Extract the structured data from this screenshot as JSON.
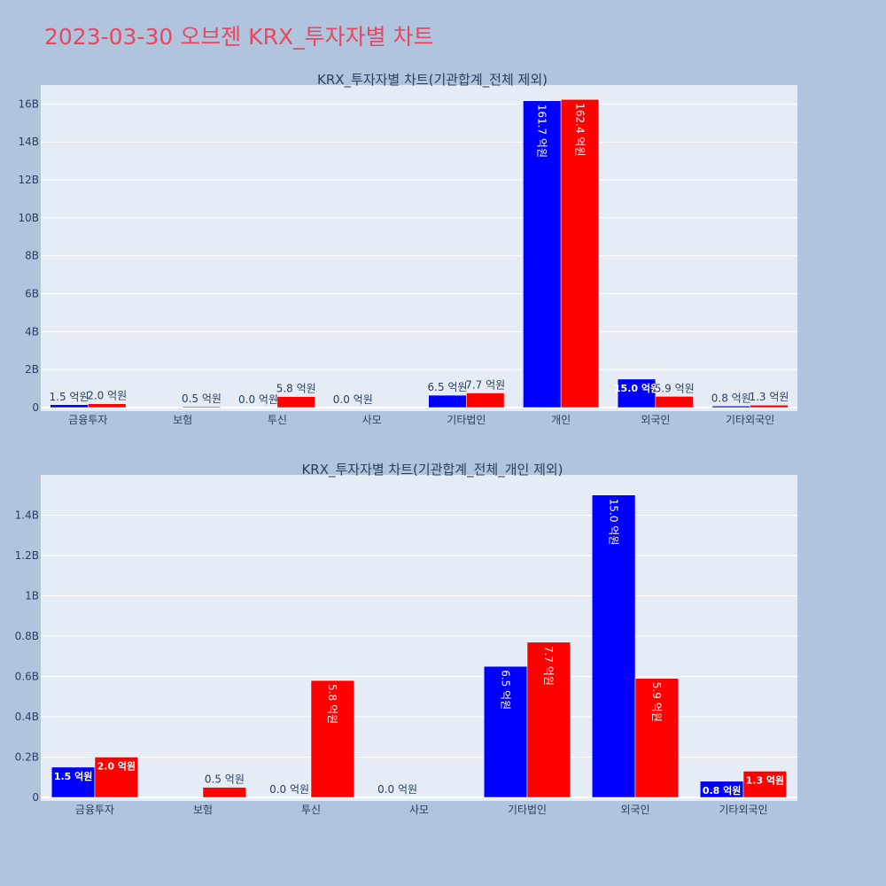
{
  "title": "2023-03-30 오브젠 KRX_투자자별 차트",
  "colors": {
    "background": "#b0c4de",
    "plot_bg": "#e5ecf6",
    "series_1": "#0000ff",
    "series_2": "#ff0000",
    "title": "#e8475f",
    "axis_text": "#2a3f5f"
  },
  "chart_data": [
    {
      "type": "bar",
      "title": "KRX_투자자별 차트(기관합계_전체 제외)",
      "categories": [
        "금융투자",
        "보험",
        "투신",
        "사모",
        "기타법인",
        "개인",
        "외국인",
        "기타외국인"
      ],
      "series": [
        {
          "values": [
            150000000,
            0,
            0,
            0,
            650000000,
            16170000000,
            1500000000,
            80000000
          ],
          "labels": [
            "1.5 억원",
            "",
            "0.0 억원",
            "0.0 억원",
            "6.5 억원",
            "161.7 억원",
            "15.0 억원",
            "0.8 억원"
          ]
        },
        {
          "values": [
            200000000,
            50000000,
            580000000,
            0,
            770000000,
            16240000000,
            590000000,
            130000000
          ],
          "labels": [
            "2.0 억원",
            "0.5 억원",
            "5.8 억원",
            "",
            "7.7 억원",
            "162.4 억원",
            "5.9 억원",
            "1.3 억원"
          ]
        }
      ],
      "ylim": [
        0,
        17000000000
      ],
      "yticks": [
        0,
        2000000000,
        4000000000,
        6000000000,
        8000000000,
        10000000000,
        12000000000,
        14000000000,
        16000000000
      ],
      "ytick_labels": [
        "0",
        "2B",
        "4B",
        "6B",
        "8B",
        "10B",
        "12B",
        "14B",
        "16B"
      ],
      "grid": true,
      "legend": "none"
    },
    {
      "type": "bar",
      "title": "KRX_투자자별 차트(기관합계_전체_개인 제외)",
      "categories": [
        "금융투자",
        "보험",
        "투신",
        "사모",
        "기타법인",
        "외국인",
        "기타외국인"
      ],
      "series": [
        {
          "values": [
            150000000,
            0,
            0,
            0,
            650000000,
            1500000000,
            80000000
          ],
          "labels": [
            "1.5 억원",
            "",
            "0.0 억원",
            "0.0 억원",
            "6.5 억원",
            "15.0 억원",
            "0.8 억원"
          ]
        },
        {
          "values": [
            200000000,
            50000000,
            580000000,
            0,
            770000000,
            590000000,
            130000000
          ],
          "labels": [
            "2.0 억원",
            "0.5 억원",
            "5.8 억원",
            "",
            "7.7 억원",
            "5.9 억원",
            "1.3 억원"
          ]
        }
      ],
      "ylim": [
        0,
        1600000000
      ],
      "yticks": [
        0,
        200000000,
        400000000,
        600000000,
        800000000,
        1000000000,
        1200000000,
        1400000000
      ],
      "ytick_labels": [
        "0",
        "0.2B",
        "0.4B",
        "0.6B",
        "0.8B",
        "1B",
        "1.2B",
        "1.4B"
      ],
      "grid": true,
      "legend": "none"
    }
  ]
}
